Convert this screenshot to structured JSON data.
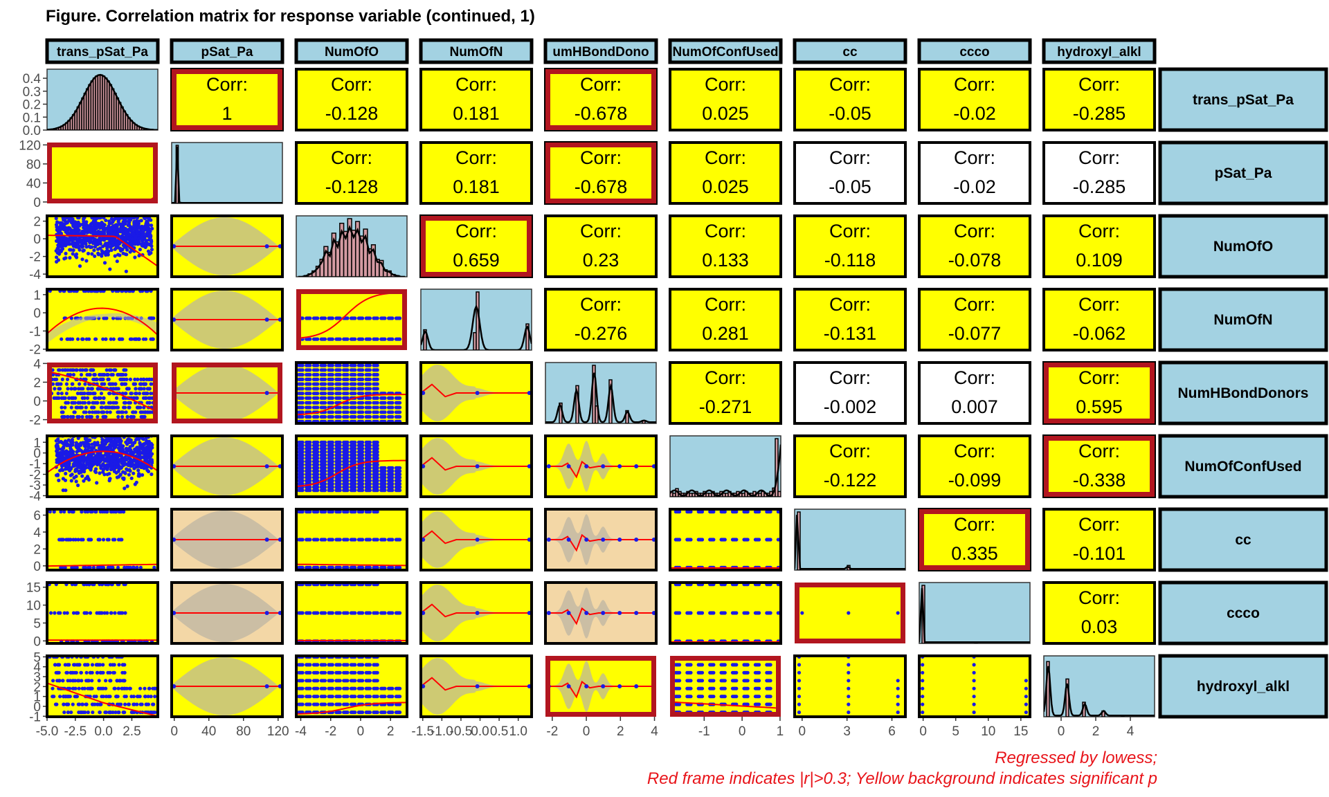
{
  "title": "Figure. Correlation matrix for response variable (continued, 1)",
  "caption": {
    "line1": "Regressed by lowess;",
    "line2": "Red frame indicates |r|>0.3; Yellow background indicates significant p"
  },
  "colors": {
    "significant_bg": "#ffff00",
    "nonsignificant_bg": "#ffffff",
    "diag_bg": "#a3d2e2",
    "strip_bg": "#a3d2e2",
    "tan_bg": "#f3d7a6",
    "red_frame": "#b2161f",
    "frame": "#000000",
    "points": "#1a1ae6",
    "lowess": "#ff0000",
    "violin": "#c8c0a0",
    "hist_fill": "#d49aa2"
  },
  "chart_data": {
    "type": "scatter-matrix",
    "corr_label": "Corr:",
    "variables": [
      "trans_pSat_Pa",
      "pSat_Pa",
      "NumOfO",
      "NumOfN",
      "NumHBondDonors",
      "NumOfConfUsed",
      "cc",
      "ccco",
      "hydroxyl_alkl"
    ],
    "column_strip_labels": [
      "trans_pSat_Pa",
      "pSat_Pa",
      "NumOfO",
      "NumOfN",
      "umHBondDono",
      "NumOfConfUsed",
      "cc",
      "ccco",
      "hydroxyl_alkl"
    ],
    "row_strip_labels": [
      "trans_pSat_Pa",
      "pSat_Pa",
      "NumOfO",
      "NumOfN",
      "NumHBondDonors",
      "NumOfConfUsed",
      "cc",
      "ccco",
      "hydroxyl_alkl"
    ],
    "correlations": [
      [
        null,
        "1",
        "-0.128",
        "0.181",
        "-0.678",
        "0.025",
        "-0.05",
        "-0.02",
        "-0.285"
      ],
      [
        null,
        null,
        "-0.128",
        "0.181",
        "-0.678",
        "0.025",
        "-0.05",
        "-0.02",
        "-0.285"
      ],
      [
        null,
        null,
        null,
        "0.659",
        "0.23",
        "0.133",
        "-0.118",
        "-0.078",
        "0.109"
      ],
      [
        null,
        null,
        null,
        null,
        "-0.276",
        "0.281",
        "-0.131",
        "-0.077",
        "-0.062"
      ],
      [
        null,
        null,
        null,
        null,
        null,
        "-0.271",
        "-0.002",
        "0.007",
        "0.595"
      ],
      [
        null,
        null,
        null,
        null,
        null,
        null,
        "-0.122",
        "-0.099",
        "-0.338"
      ],
      [
        null,
        null,
        null,
        null,
        null,
        null,
        null,
        "0.335",
        "-0.101"
      ],
      [
        null,
        null,
        null,
        null,
        null,
        null,
        null,
        null,
        "0.03"
      ],
      [
        null,
        null,
        null,
        null,
        null,
        null,
        null,
        null,
        null
      ]
    ],
    "significant": [
      [
        true,
        true,
        true,
        true,
        true,
        true,
        true,
        true,
        true
      ],
      [
        true,
        true,
        true,
        true,
        true,
        true,
        false,
        false,
        false
      ],
      [
        true,
        true,
        true,
        true,
        true,
        true,
        true,
        true,
        true
      ],
      [
        true,
        true,
        true,
        true,
        true,
        true,
        true,
        true,
        true
      ],
      [
        true,
        true,
        true,
        true,
        true,
        true,
        false,
        false,
        true
      ],
      [
        true,
        true,
        true,
        true,
        true,
        true,
        true,
        true,
        true
      ],
      [
        true,
        false,
        true,
        true,
        false,
        true,
        true,
        true,
        true
      ],
      [
        true,
        false,
        true,
        true,
        false,
        true,
        true,
        true,
        true
      ],
      [
        true,
        true,
        true,
        true,
        true,
        true,
        true,
        true,
        true
      ]
    ],
    "y_axis_ticks": [
      [
        "0.0",
        "0.1",
        "0.2",
        "0.3",
        "0.4"
      ],
      [
        "0",
        "40",
        "80",
        "120"
      ],
      [
        "-4",
        "-2",
        "0",
        "2"
      ],
      [
        "-2",
        "-1",
        "0",
        "1"
      ],
      [
        "-2",
        "0",
        "2",
        "4"
      ],
      [
        "-4",
        "-3",
        "-2",
        "-1",
        "0",
        "1"
      ],
      [
        "0",
        "2",
        "4",
        "6"
      ],
      [
        "0",
        "5",
        "10",
        "15"
      ],
      [
        "-1",
        "0",
        "1",
        "2",
        "3",
        "4",
        "5"
      ]
    ],
    "y_axis_ranges": [
      [
        0,
        0.47
      ],
      [
        -3,
        125
      ],
      [
        -4.3,
        2.6
      ],
      [
        -2.05,
        1.3
      ],
      [
        -2.4,
        4.1
      ],
      [
        -4.1,
        1.6
      ],
      [
        -0.5,
        6.7
      ],
      [
        -0.7,
        16.3
      ],
      [
        -1.05,
        5.1
      ]
    ],
    "x_axis_ticks": [
      [
        "-5.0",
        "-2.5",
        "0.0",
        "2.5"
      ],
      [
        "0",
        "40",
        "80",
        "120"
      ],
      [
        "-4",
        "-2",
        "0",
        "2"
      ],
      [
        "-1.5",
        "-1.0",
        "-0.5",
        "0.0",
        "0.5",
        "1.0"
      ],
      [
        "-2",
        "0",
        "2",
        "4"
      ],
      [
        "-1",
        "0",
        "1"
      ],
      [
        "0",
        "3",
        "6"
      ],
      [
        "0",
        "5",
        "10",
        "15"
      ],
      [
        "0",
        "2",
        "4"
      ]
    ],
    "x_axis_ranges": [
      [
        -5.0,
        4.8
      ],
      [
        -3,
        125
      ],
      [
        -4.3,
        3.1
      ],
      [
        -1.55,
        1.35
      ],
      [
        -2.4,
        4.1
      ],
      [
        -1.9,
        1.02
      ],
      [
        -0.5,
        6.9
      ],
      [
        -0.6,
        16.4
      ],
      [
        -1.0,
        5.4
      ]
    ]
  }
}
